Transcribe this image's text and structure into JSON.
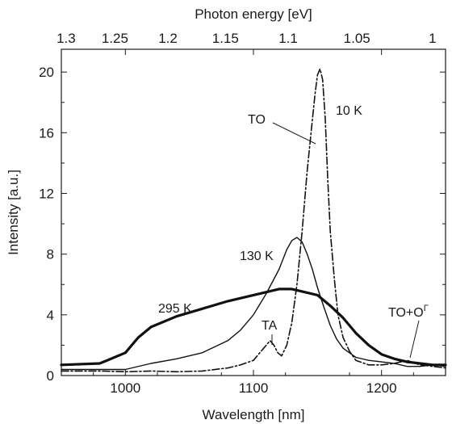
{
  "chart_data": {
    "type": "line",
    "xlabel": "Wavelength [nm]",
    "ylabel": "Intensity [a.u.]",
    "top_xlabel": "Photon energy [eV]",
    "xlim": [
      950,
      1250
    ],
    "ylim": [
      0,
      21.5
    ],
    "x_ticks": [
      1000,
      1100,
      1200
    ],
    "y_ticks": [
      0,
      4,
      8,
      12,
      16,
      20
    ],
    "top_ticks": [
      {
        "value": 1.3,
        "label": "1.3"
      },
      {
        "value": 1.25,
        "label": "1.25"
      },
      {
        "value": 1.2,
        "label": "1.2"
      },
      {
        "value": 1.15,
        "label": "1.15"
      },
      {
        "value": 1.1,
        "label": "1.1"
      },
      {
        "value": 1.05,
        "label": "1.05"
      },
      {
        "value": 1.0,
        "label": "1"
      }
    ],
    "grid": false,
    "series": [
      {
        "name": "10 K",
        "style": "dashdot",
        "x": [
          950,
          980,
          1000,
          1020,
          1040,
          1060,
          1080,
          1090,
          1100,
          1105,
          1110,
          1113,
          1116,
          1119,
          1122,
          1126,
          1130,
          1134,
          1138,
          1142,
          1145,
          1148,
          1150,
          1152,
          1154,
          1156,
          1158,
          1160,
          1163,
          1166,
          1170,
          1175,
          1180,
          1190,
          1200,
          1210,
          1220,
          1230,
          1240,
          1250
        ],
        "y": [
          0.3,
          0.3,
          0.25,
          0.3,
          0.25,
          0.3,
          0.5,
          0.7,
          1.0,
          1.5,
          2.0,
          2.3,
          2.0,
          1.5,
          1.3,
          2.0,
          3.5,
          6.0,
          9.5,
          13.5,
          16.0,
          18.5,
          19.8,
          20.2,
          19.5,
          17.0,
          13.0,
          9.5,
          6.5,
          4.0,
          2.5,
          1.6,
          1.0,
          0.7,
          0.7,
          0.8,
          1.0,
          0.7,
          0.6,
          0.5
        ]
      },
      {
        "name": "130 K",
        "style": "thin",
        "x": [
          950,
          980,
          1000,
          1020,
          1040,
          1060,
          1080,
          1090,
          1100,
          1110,
          1120,
          1126,
          1130,
          1134,
          1138,
          1142,
          1146,
          1150,
          1155,
          1160,
          1165,
          1170,
          1180,
          1190,
          1200,
          1210,
          1220,
          1230,
          1240,
          1250
        ],
        "y": [
          0.4,
          0.4,
          0.4,
          0.8,
          1.1,
          1.5,
          2.3,
          3.0,
          4.0,
          5.4,
          7.0,
          8.3,
          8.9,
          9.1,
          8.8,
          8.0,
          7.0,
          5.8,
          4.5,
          3.3,
          2.4,
          1.8,
          1.2,
          1.0,
          0.9,
          0.8,
          0.6,
          0.6,
          0.7,
          0.6
        ]
      },
      {
        "name": "295 K",
        "style": "thick",
        "x": [
          950,
          980,
          1000,
          1010,
          1020,
          1040,
          1060,
          1080,
          1100,
          1110,
          1120,
          1130,
          1140,
          1150,
          1160,
          1170,
          1180,
          1190,
          1200,
          1210,
          1220,
          1230,
          1240,
          1250
        ],
        "y": [
          0.7,
          0.8,
          1.5,
          2.5,
          3.2,
          3.9,
          4.4,
          4.9,
          5.3,
          5.5,
          5.7,
          5.7,
          5.5,
          5.3,
          4.6,
          3.8,
          2.8,
          2.0,
          1.4,
          1.1,
          0.9,
          0.8,
          0.7,
          0.7
        ]
      }
    ],
    "annotations": [
      {
        "text": "TO"
      },
      {
        "text": "10 K"
      },
      {
        "text": "130 K"
      },
      {
        "text": "295 K"
      },
      {
        "text": "TA"
      },
      {
        "text": "TO+O",
        "superscript": "Γ"
      }
    ]
  }
}
